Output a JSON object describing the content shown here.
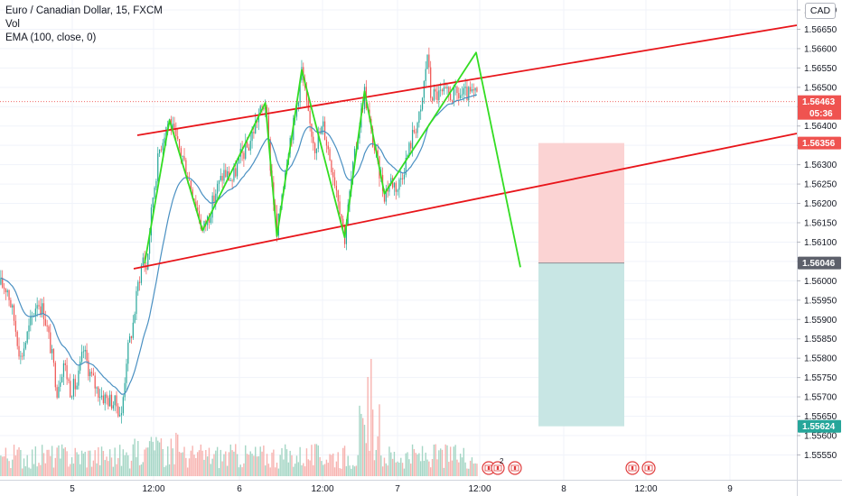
{
  "legend": {
    "symbol_line": "Euro / Canadian Dollar, 15, FXCM",
    "volume_label": "Vol",
    "ema_label": "EMA (100, close, 0)"
  },
  "currency_button": "CAD",
  "colors": {
    "up": "#26a69a",
    "down": "#ef5350",
    "volume_up": "#a5d6c5",
    "volume_down": "#f7b3b0",
    "ema": "#4a90c2",
    "channel": "#e8151a",
    "zigzag": "#33dd22",
    "stop_zone": "#fbd3d3",
    "target_zone": "#c8e6e4",
    "price_tag_red": "#ef5350",
    "price_tag_teal": "#26a69a",
    "price_tag_grey": "#5d606b"
  },
  "chart_data": {
    "type": "candlestick",
    "y_axis": {
      "ylim": [
        1.55525,
        1.56725
      ],
      "ticks": [
        "1.56700",
        "1.56650",
        "1.56600",
        "1.56550",
        "1.56500",
        "1.56450",
        "1.56400",
        "1.56350",
        "1.56300",
        "1.56250",
        "1.56200",
        "1.56150",
        "1.56100",
        "1.56050",
        "1.56000",
        "1.55950",
        "1.55900",
        "1.55850",
        "1.55800",
        "1.55750",
        "1.55700",
        "1.55650",
        "1.55600",
        "1.55550"
      ]
    },
    "x_axis": {
      "ticks": [
        "5",
        "12:00",
        "6",
        "12:00",
        "7",
        "12:00",
        "8",
        "12:00",
        "9"
      ],
      "bars_visible": 288
    },
    "current_price": {
      "price": 1.56463,
      "label": "1.56463",
      "countdown": "05:36"
    },
    "channel_lines": [
      {
        "from": {
          "bar": 73,
          "price": 1.56385
        },
        "to": {
          "bar": 288,
          "price": 1.56695
        }
      },
      {
        "from": {
          "bar": 71,
          "price": 1.56041
        },
        "to": {
          "bar": 288,
          "price": 1.56385
        }
      }
    ],
    "zigzag": [
      {
        "bar": 87,
        "price": 1.56045
      },
      {
        "bar": 102,
        "price": 1.56415
      },
      {
        "bar": 122,
        "price": 1.5613
      },
      {
        "bar": 160,
        "price": 1.5646
      },
      {
        "bar": 167,
        "price": 1.56115
      },
      {
        "bar": 182,
        "price": 1.56545
      },
      {
        "bar": 208,
        "price": 1.56112
      },
      {
        "bar": 220,
        "price": 1.5649
      },
      {
        "bar": 232,
        "price": 1.56225
      },
      {
        "bar": 258,
        "price": 1.5659
      },
      {
        "bar": 279,
        "price": 1.56035
      }
    ],
    "position": {
      "type": "short",
      "start_bar": 289,
      "end_bar": 337,
      "entry": {
        "price": 1.56046,
        "label": "1.56046"
      },
      "stop": {
        "price": 1.56356,
        "label": "1.56356"
      },
      "target": {
        "price": 1.55624,
        "label": "1.55624"
      }
    },
    "events": [
      {
        "bar": 265,
        "label": "2",
        "kind": "flag-pair"
      },
      {
        "bar": 276,
        "label": "",
        "kind": "flag"
      },
      {
        "bar": 340,
        "label": "",
        "kind": "flag-pair"
      }
    ]
  }
}
